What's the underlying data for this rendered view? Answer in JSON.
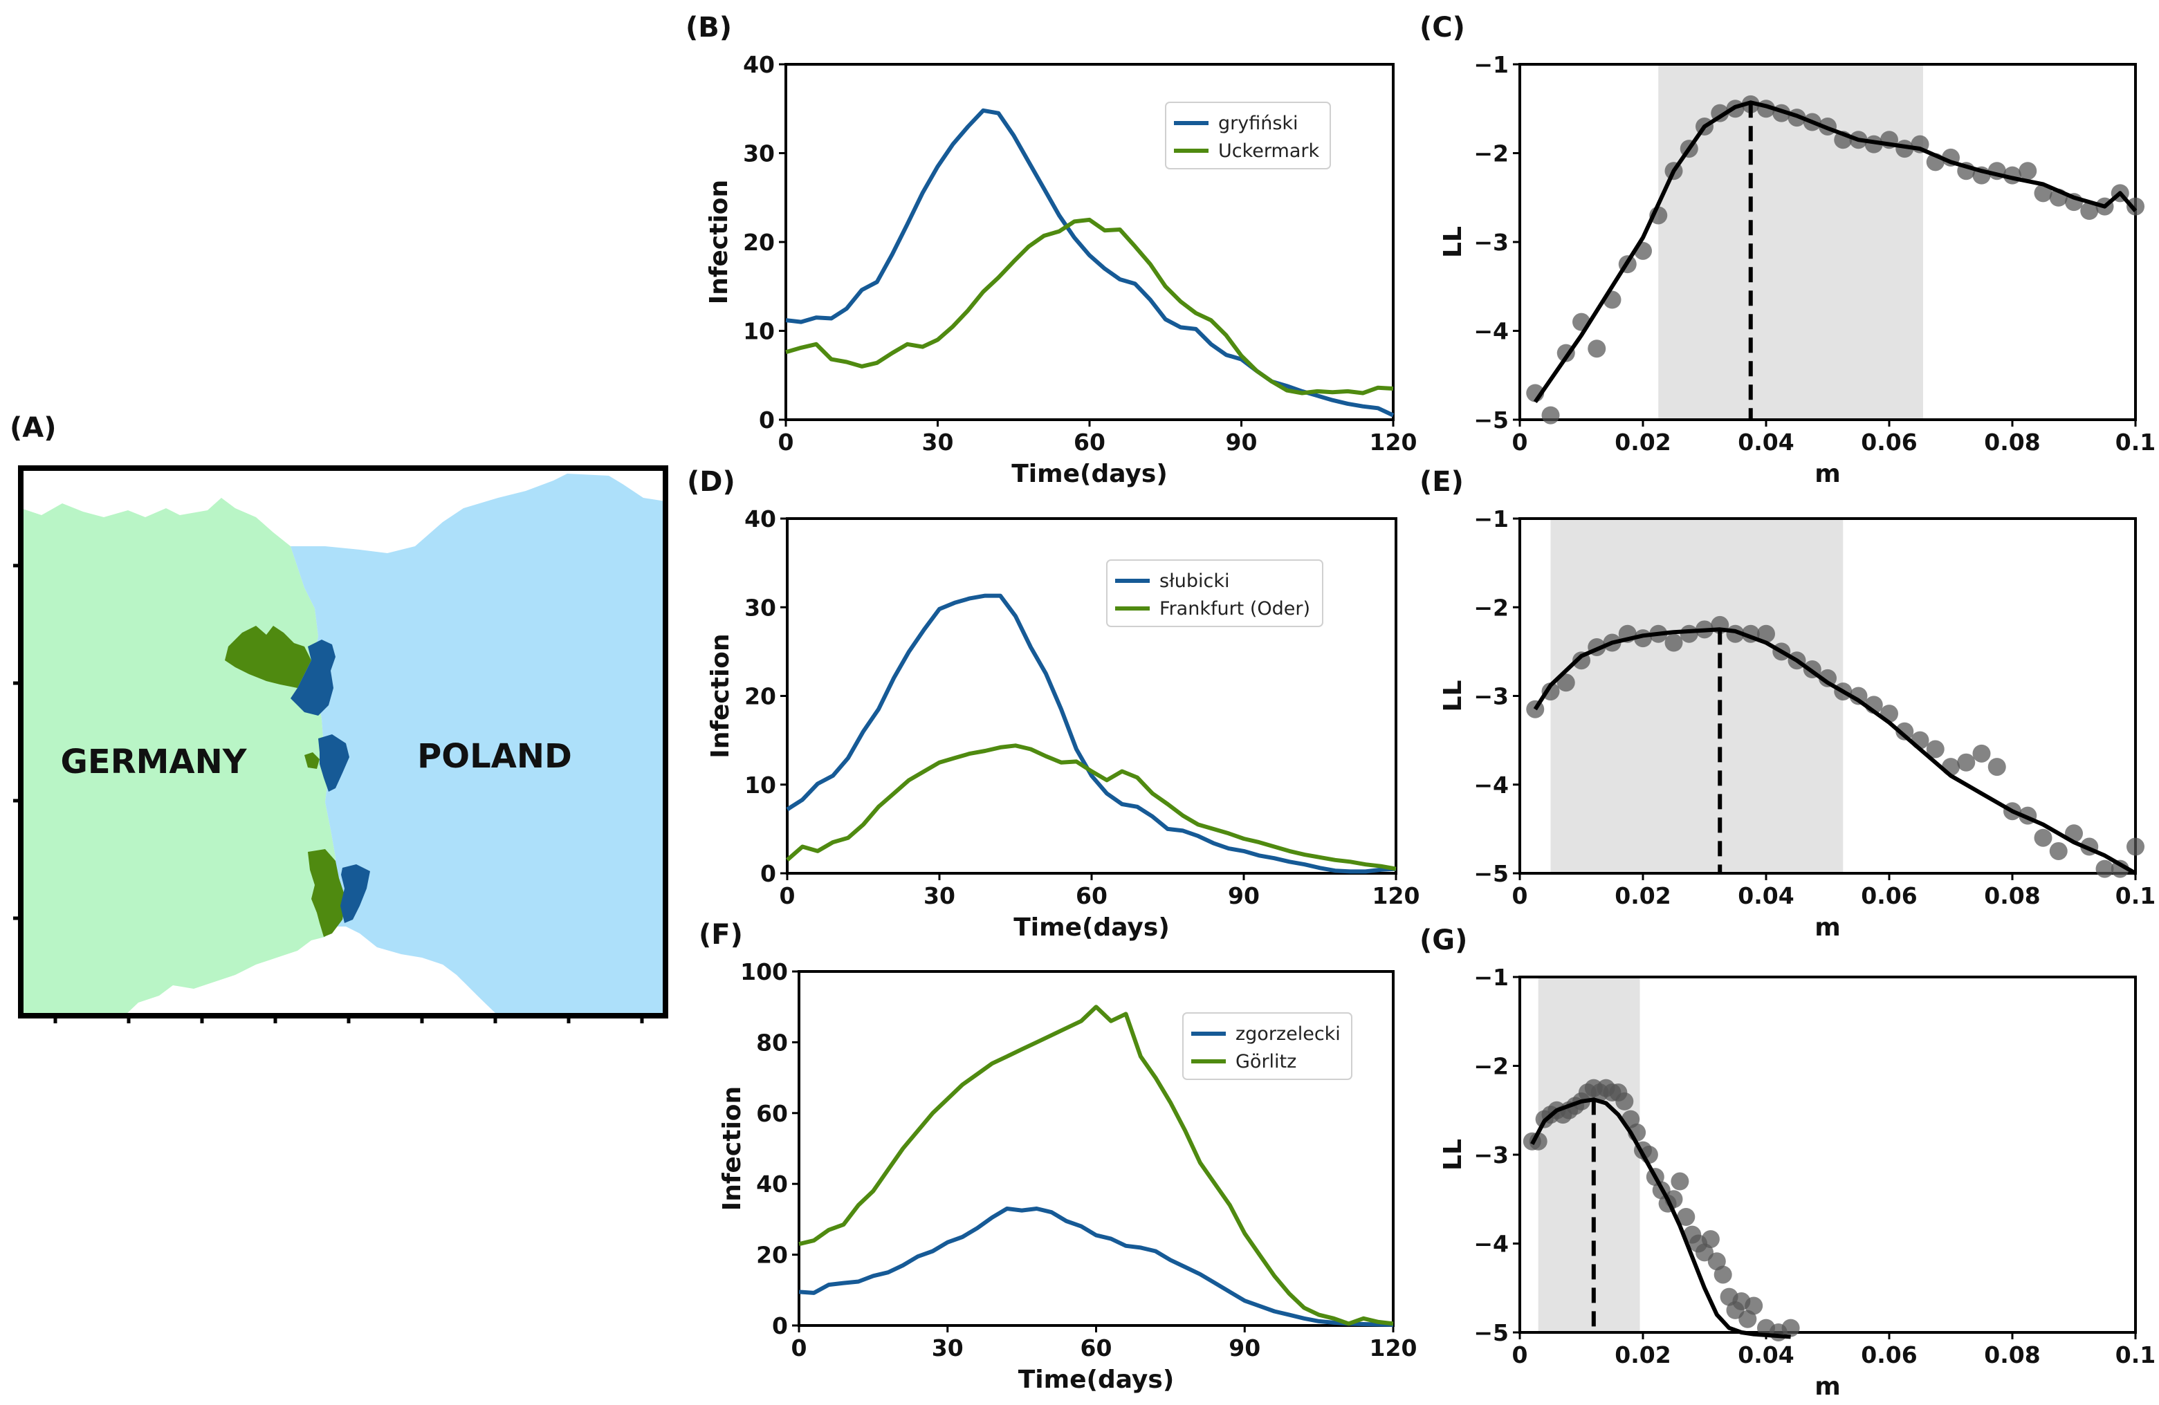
{
  "map": {
    "label": "(A)",
    "germany_label": "GERMANY",
    "poland_label": "POLAND",
    "germany_color": "#b9f5c6",
    "poland_color": "#ade0fa",
    "poland_region_color": "#165a96",
    "germany_region_color": "#4f8a10"
  },
  "colors": {
    "blue": "#165a96",
    "green": "#4f8a10",
    "shade": "#e3e3e3",
    "point": "#555555",
    "fit": "#000000"
  },
  "chart_data": [
    {
      "id": "B",
      "label": "(B)",
      "type": "line",
      "xlabel": "Time(days)",
      "ylabel": "Infection",
      "xlim": [
        0,
        120
      ],
      "ylim": [
        0,
        40
      ],
      "xticks": [
        0,
        30,
        60,
        90,
        120
      ],
      "yticks": [
        0,
        10,
        20,
        30,
        40
      ],
      "xtick_labels": [
        "0",
        "30",
        "60",
        "90",
        "120"
      ],
      "ytick_labels": [
        "0",
        "10",
        "20",
        "30",
        "40"
      ],
      "series": [
        {
          "name": "gryfiński",
          "color": "#165a96",
          "x": [
            0,
            3,
            6,
            9,
            12,
            15,
            18,
            21,
            24,
            27,
            30,
            33,
            36,
            39,
            42,
            45,
            48,
            51,
            54,
            57,
            60,
            63,
            66,
            69,
            72,
            75,
            78,
            81,
            84,
            87,
            90,
            93,
            96,
            99,
            102,
            105,
            108,
            111,
            114,
            117,
            120
          ],
          "values": [
            11.2,
            11.0,
            11.5,
            11.4,
            12.5,
            14.6,
            15.5,
            18.6,
            22.0,
            25.5,
            28.5,
            31.0,
            33.0,
            34.8,
            34.5,
            32.0,
            29.0,
            26.0,
            23.0,
            20.5,
            18.5,
            17.0,
            15.8,
            15.3,
            13.5,
            11.3,
            10.4,
            10.2,
            8.5,
            7.3,
            6.8,
            5.5,
            4.3,
            3.8,
            3.2,
            2.7,
            2.2,
            1.8,
            1.5,
            1.3,
            0.5
          ]
        },
        {
          "name": "Uckermark",
          "color": "#4f8a10",
          "x": [
            0,
            3,
            6,
            9,
            12,
            15,
            18,
            21,
            24,
            27,
            30,
            33,
            36,
            39,
            42,
            45,
            48,
            51,
            54,
            57,
            60,
            63,
            66,
            69,
            72,
            75,
            78,
            81,
            84,
            87,
            90,
            93,
            96,
            99,
            102,
            105,
            108,
            111,
            114,
            117,
            120
          ],
          "values": [
            7.6,
            8.1,
            8.5,
            6.8,
            6.5,
            6.0,
            6.4,
            7.5,
            8.5,
            8.2,
            9.0,
            10.5,
            12.3,
            14.4,
            16.0,
            17.8,
            19.5,
            20.7,
            21.2,
            22.3,
            22.5,
            21.3,
            21.4,
            19.5,
            17.5,
            15.0,
            13.3,
            12.0,
            11.2,
            9.5,
            7.2,
            5.5,
            4.3,
            3.3,
            3.0,
            3.2,
            3.1,
            3.2,
            3.0,
            3.6,
            3.5
          ]
        }
      ]
    },
    {
      "id": "C",
      "label": "(C)",
      "type": "scatter",
      "xlabel": "m",
      "ylabel": "LL",
      "xlim": [
        0,
        0.1
      ],
      "ylim": [
        -5,
        -1
      ],
      "xticks": [
        0,
        0.02,
        0.04,
        0.06,
        0.08,
        0.1
      ],
      "yticks": [
        -5,
        -4,
        -3,
        -2,
        -1
      ],
      "xtick_labels": [
        "0",
        "0.02",
        "0.04",
        "0.06",
        "0.08",
        "0.1"
      ],
      "ytick_labels": [
        "−5",
        "−4",
        "−3",
        "−2",
        "−1"
      ],
      "shade": [
        0.0225,
        0.0655
      ],
      "optimum": 0.0375,
      "points_x": [
        0.0025,
        0.005,
        0.0075,
        0.01,
        0.0125,
        0.015,
        0.0175,
        0.02,
        0.0225,
        0.025,
        0.0275,
        0.03,
        0.0325,
        0.035,
        0.0375,
        0.04,
        0.0425,
        0.045,
        0.0475,
        0.05,
        0.0525,
        0.055,
        0.0575,
        0.06,
        0.0625,
        0.065,
        0.0675,
        0.07,
        0.0725,
        0.075,
        0.0775,
        0.08,
        0.0825,
        0.085,
        0.0875,
        0.09,
        0.0925,
        0.095,
        0.0975,
        0.1
      ],
      "points_y": [
        -4.7,
        -4.95,
        -4.25,
        -3.9,
        -4.2,
        -3.65,
        -3.25,
        -3.1,
        -2.7,
        -2.2,
        -1.95,
        -1.7,
        -1.55,
        -1.5,
        -1.45,
        -1.5,
        -1.55,
        -1.6,
        -1.65,
        -1.7,
        -1.85,
        -1.85,
        -1.9,
        -1.85,
        -1.95,
        -1.9,
        -2.1,
        -2.05,
        -2.2,
        -2.25,
        -2.2,
        -2.25,
        -2.2,
        -2.45,
        -2.5,
        -2.55,
        -2.65,
        -2.6,
        -2.45,
        -2.6
      ],
      "fit_x": [
        0.0025,
        0.005,
        0.01,
        0.015,
        0.02,
        0.025,
        0.03,
        0.035,
        0.0375,
        0.04,
        0.045,
        0.05,
        0.055,
        0.06,
        0.065,
        0.07,
        0.075,
        0.08,
        0.085,
        0.09,
        0.095,
        0.0975,
        0.1
      ],
      "fit_y": [
        -4.8,
        -4.55,
        -4.05,
        -3.5,
        -2.95,
        -2.2,
        -1.7,
        -1.48,
        -1.43,
        -1.47,
        -1.58,
        -1.72,
        -1.85,
        -1.9,
        -1.95,
        -2.1,
        -2.2,
        -2.28,
        -2.35,
        -2.5,
        -2.6,
        -2.45,
        -2.65
      ]
    },
    {
      "id": "D",
      "label": "(D)",
      "type": "line",
      "xlabel": "Time(days)",
      "ylabel": "Infection",
      "xlim": [
        0,
        120
      ],
      "ylim": [
        0,
        40
      ],
      "xticks": [
        0,
        30,
        60,
        90,
        120
      ],
      "yticks": [
        0,
        10,
        20,
        30,
        40
      ],
      "xtick_labels": [
        "0",
        "30",
        "60",
        "90",
        "120"
      ],
      "ytick_labels": [
        "0",
        "10",
        "20",
        "30",
        "40"
      ],
      "series": [
        {
          "name": "słubicki",
          "color": "#165a96",
          "x": [
            0,
            3,
            6,
            9,
            12,
            15,
            18,
            21,
            24,
            27,
            30,
            33,
            36,
            39,
            42,
            45,
            48,
            51,
            54,
            57,
            60,
            63,
            66,
            69,
            72,
            75,
            78,
            81,
            84,
            87,
            90,
            93,
            96,
            99,
            102,
            105,
            108,
            111,
            114,
            117,
            120
          ],
          "values": [
            7.2,
            8.3,
            10.1,
            11.0,
            13.0,
            16.0,
            18.5,
            22.0,
            25.0,
            27.5,
            29.8,
            30.5,
            31.0,
            31.3,
            31.3,
            29.0,
            25.5,
            22.5,
            18.5,
            14.0,
            11.0,
            9.0,
            7.8,
            7.5,
            6.4,
            5.0,
            4.8,
            4.2,
            3.4,
            2.8,
            2.5,
            2.0,
            1.7,
            1.3,
            1.0,
            0.6,
            0.3,
            0.2,
            0.2,
            0.4,
            0.5
          ]
        },
        {
          "name": "Frankfurt (Oder)",
          "color": "#4f8a10",
          "x": [
            0,
            3,
            6,
            9,
            12,
            15,
            18,
            21,
            24,
            27,
            30,
            33,
            36,
            39,
            42,
            45,
            48,
            51,
            54,
            57,
            60,
            63,
            66,
            69,
            72,
            75,
            78,
            81,
            84,
            87,
            90,
            93,
            96,
            99,
            102,
            105,
            108,
            111,
            114,
            117,
            120
          ],
          "values": [
            1.5,
            3.0,
            2.5,
            3.5,
            4.0,
            5.5,
            7.5,
            9.0,
            10.5,
            11.5,
            12.5,
            13.0,
            13.5,
            13.8,
            14.2,
            14.4,
            14.0,
            13.2,
            12.5,
            12.6,
            11.5,
            10.5,
            11.5,
            10.8,
            9.0,
            7.8,
            6.5,
            5.5,
            5.0,
            4.5,
            3.9,
            3.5,
            3.0,
            2.5,
            2.1,
            1.8,
            1.5,
            1.3,
            1.0,
            0.8,
            0.5
          ]
        }
      ]
    },
    {
      "id": "E",
      "label": "(E)",
      "type": "scatter",
      "xlabel": "m",
      "ylabel": "LL",
      "xlim": [
        0,
        0.1
      ],
      "ylim": [
        -5,
        -1
      ],
      "xticks": [
        0,
        0.02,
        0.04,
        0.06,
        0.08,
        0.1
      ],
      "yticks": [
        -5,
        -4,
        -3,
        -2,
        -1
      ],
      "xtick_labels": [
        "0",
        "0.02",
        "0.04",
        "0.06",
        "0.08",
        "0.1"
      ],
      "ytick_labels": [
        "−5",
        "−4",
        "−3",
        "−2",
        "−1"
      ],
      "shade": [
        0.005,
        0.0525
      ],
      "optimum": 0.0325,
      "points_x": [
        0.0025,
        0.005,
        0.0075,
        0.01,
        0.0125,
        0.015,
        0.0175,
        0.02,
        0.0225,
        0.025,
        0.0275,
        0.03,
        0.0325,
        0.035,
        0.0375,
        0.04,
        0.0425,
        0.045,
        0.0475,
        0.05,
        0.0525,
        0.055,
        0.0575,
        0.06,
        0.0625,
        0.065,
        0.0675,
        0.07,
        0.0725,
        0.075,
        0.0775,
        0.08,
        0.0825,
        0.085,
        0.0875,
        0.09,
        0.0925,
        0.095,
        0.0975,
        0.1
      ],
      "points_y": [
        -3.15,
        -2.95,
        -2.85,
        -2.6,
        -2.45,
        -2.4,
        -2.3,
        -2.35,
        -2.3,
        -2.4,
        -2.3,
        -2.25,
        -2.2,
        -2.3,
        -2.3,
        -2.3,
        -2.5,
        -2.6,
        -2.7,
        -2.8,
        -2.95,
        -3.0,
        -3.1,
        -3.2,
        -3.4,
        -3.5,
        -3.6,
        -3.8,
        -3.75,
        -3.65,
        -3.8,
        -4.3,
        -4.35,
        -4.6,
        -4.75,
        -4.55,
        -4.7,
        -4.95,
        -4.95,
        -4.7
      ],
      "fit_x": [
        0.0025,
        0.005,
        0.01,
        0.015,
        0.02,
        0.025,
        0.03,
        0.0325,
        0.035,
        0.04,
        0.045,
        0.05,
        0.055,
        0.06,
        0.065,
        0.07,
        0.075,
        0.08,
        0.085,
        0.09,
        0.095,
        0.1
      ],
      "fit_y": [
        -3.15,
        -2.88,
        -2.55,
        -2.4,
        -2.32,
        -2.28,
        -2.26,
        -2.25,
        -2.27,
        -2.4,
        -2.6,
        -2.85,
        -3.05,
        -3.3,
        -3.6,
        -3.9,
        -4.1,
        -4.3,
        -4.45,
        -4.65,
        -4.8,
        -5.0
      ]
    },
    {
      "id": "F",
      "label": "(F)",
      "type": "line",
      "xlabel": "Time(days)",
      "ylabel": "Infection",
      "xlim": [
        0,
        120
      ],
      "ylim": [
        0,
        100
      ],
      "xticks": [
        0,
        30,
        60,
        90,
        120
      ],
      "yticks": [
        0,
        20,
        40,
        60,
        80,
        100
      ],
      "xtick_labels": [
        "0",
        "30",
        "60",
        "90",
        "120"
      ],
      "ytick_labels": [
        "0",
        "20",
        "40",
        "60",
        "80",
        "100"
      ],
      "series": [
        {
          "name": "zgorzelecki",
          "color": "#165a96",
          "x": [
            0,
            3,
            6,
            9,
            12,
            15,
            18,
            21,
            24,
            27,
            30,
            33,
            36,
            39,
            42,
            45,
            48,
            51,
            54,
            57,
            60,
            63,
            66,
            69,
            72,
            75,
            78,
            81,
            84,
            87,
            90,
            93,
            96,
            99,
            102,
            105,
            108,
            111,
            114,
            117,
            120
          ],
          "values": [
            9.5,
            9.2,
            11.5,
            12.0,
            12.4,
            14.0,
            15.0,
            17.0,
            19.5,
            21.0,
            23.5,
            25.0,
            27.5,
            30.5,
            33.0,
            32.5,
            33.0,
            32.0,
            29.5,
            28.0,
            25.5,
            24.5,
            22.5,
            22.0,
            21.0,
            18.5,
            16.5,
            14.5,
            12.0,
            9.5,
            7.0,
            5.5,
            4.0,
            3.0,
            2.0,
            1.2,
            0.8,
            0.5,
            0.4,
            0.3,
            0.2
          ]
        },
        {
          "name": "Görlitz",
          "color": "#4f8a10",
          "x": [
            0,
            3,
            6,
            9,
            12,
            15,
            18,
            21,
            24,
            27,
            30,
            33,
            36,
            39,
            42,
            45,
            48,
            51,
            54,
            57,
            60,
            63,
            66,
            69,
            72,
            75,
            78,
            81,
            84,
            87,
            90,
            93,
            96,
            99,
            102,
            105,
            108,
            111,
            114,
            117,
            120
          ],
          "values": [
            23.0,
            24.0,
            27.0,
            28.5,
            34.0,
            38.0,
            44.0,
            50.0,
            55.0,
            60.0,
            64.0,
            68.0,
            71.0,
            74.0,
            76.0,
            78.0,
            80.0,
            82.0,
            84.0,
            86.0,
            90.0,
            86.0,
            88.0,
            76.0,
            70.0,
            63.0,
            55.0,
            46.0,
            40.0,
            34.0,
            26.0,
            20.0,
            14.0,
            9.0,
            5.0,
            3.0,
            2.0,
            0.5,
            2.0,
            1.0,
            0.5
          ]
        }
      ]
    },
    {
      "id": "G",
      "label": "(G)",
      "type": "scatter",
      "xlabel": "m",
      "ylabel": "LL",
      "xlim": [
        0,
        0.1
      ],
      "ylim": [
        -5,
        -1
      ],
      "xticks": [
        0,
        0.02,
        0.04,
        0.06,
        0.08,
        0.1
      ],
      "yticks": [
        -5,
        -4,
        -3,
        -2,
        -1
      ],
      "xtick_labels": [
        "0",
        "0.02",
        "0.04",
        "0.06",
        "0.08",
        "0.1"
      ],
      "ytick_labels": [
        "−5",
        "−4",
        "−3",
        "−2",
        "−1"
      ],
      "shade": [
        0.003,
        0.0195
      ],
      "optimum": 0.012,
      "points_x": [
        0.002,
        0.003,
        0.004,
        0.005,
        0.006,
        0.007,
        0.008,
        0.009,
        0.01,
        0.011,
        0.012,
        0.013,
        0.014,
        0.015,
        0.016,
        0.017,
        0.018,
        0.019,
        0.02,
        0.021,
        0.022,
        0.023,
        0.024,
        0.025,
        0.026,
        0.027,
        0.028,
        0.029,
        0.03,
        0.031,
        0.032,
        0.033,
        0.034,
        0.035,
        0.036,
        0.037,
        0.038,
        0.04,
        0.042,
        0.044
      ],
      "points_y": [
        -2.85,
        -2.85,
        -2.6,
        -2.55,
        -2.5,
        -2.55,
        -2.5,
        -2.45,
        -2.4,
        -2.3,
        -2.25,
        -2.3,
        -2.25,
        -2.3,
        -2.3,
        -2.4,
        -2.6,
        -2.75,
        -2.95,
        -3.0,
        -3.25,
        -3.4,
        -3.55,
        -3.5,
        -3.3,
        -3.7,
        -3.9,
        -4.0,
        -4.1,
        -3.95,
        -4.2,
        -4.35,
        -4.6,
        -4.75,
        -4.65,
        -4.85,
        -4.7,
        -4.95,
        -5.0,
        -4.95
      ],
      "fit_x": [
        0.002,
        0.004,
        0.006,
        0.008,
        0.01,
        0.012,
        0.014,
        0.016,
        0.018,
        0.02,
        0.022,
        0.024,
        0.026,
        0.028,
        0.03,
        0.032,
        0.034,
        0.036,
        0.038,
        0.04,
        0.042,
        0.044
      ],
      "fit_y": [
        -2.88,
        -2.62,
        -2.5,
        -2.45,
        -2.4,
        -2.38,
        -2.42,
        -2.55,
        -2.75,
        -3.0,
        -3.25,
        -3.5,
        -3.8,
        -4.15,
        -4.5,
        -4.8,
        -4.95,
        -5.0,
        -5.02,
        -5.03,
        -5.04,
        -5.05
      ]
    }
  ]
}
